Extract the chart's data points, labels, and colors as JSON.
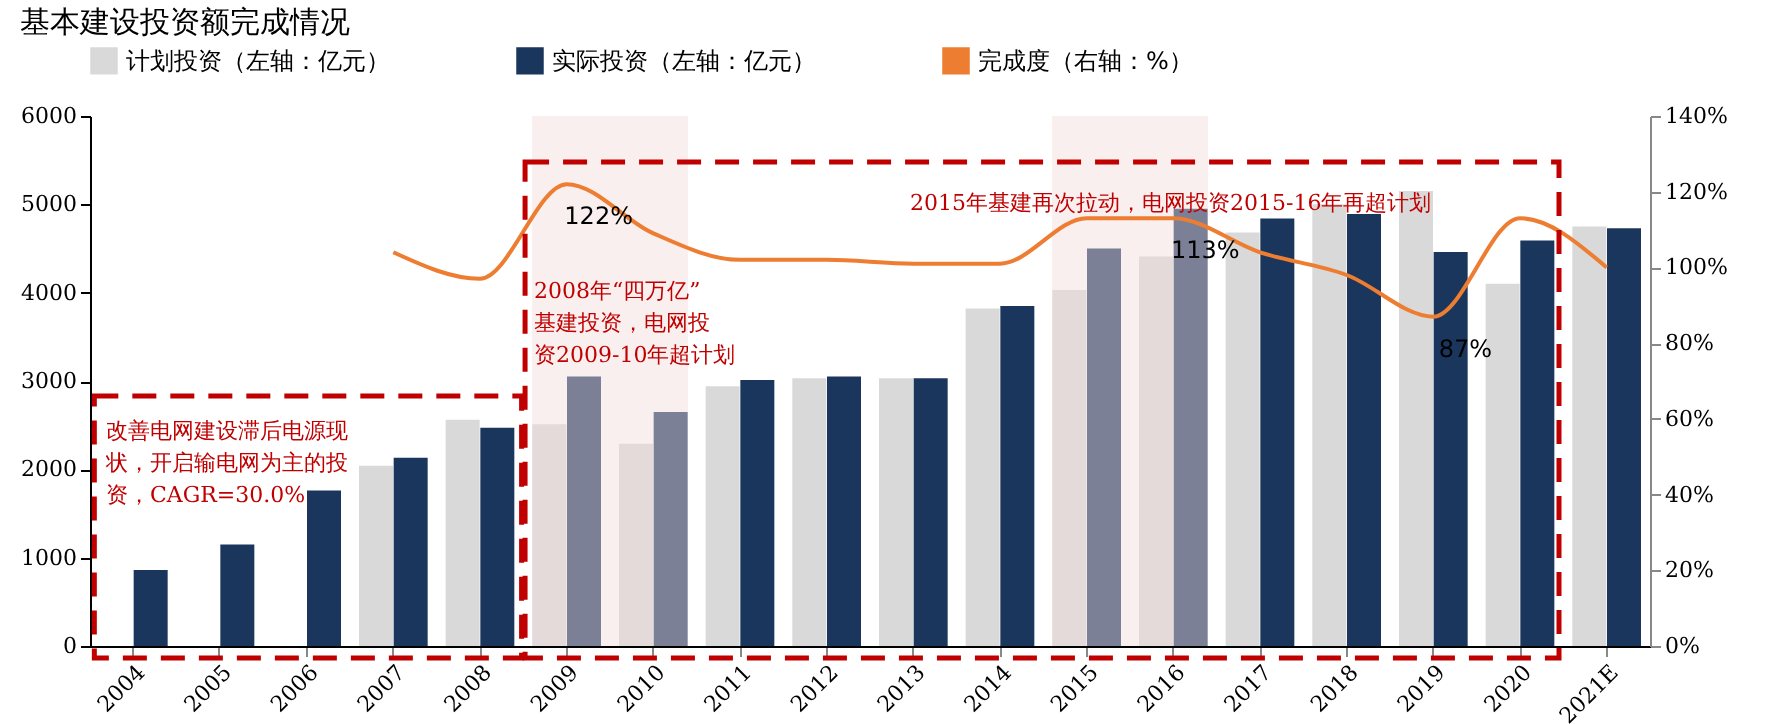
{
  "chart_data": {
    "type": "bar",
    "title": "基本建设投资额完成情况",
    "categories": [
      "2004",
      "2005",
      "2006",
      "2007",
      "2008",
      "2009",
      "2010",
      "2011",
      "2012",
      "2013",
      "2014",
      "2015",
      "2016",
      "2017",
      "2018",
      "2019",
      "2020",
      "2021E"
    ],
    "series": [
      {
        "name": "计划投资（左轴：亿元）",
        "color": "#d9d9d9",
        "values": [
          null,
          null,
          null,
          2040,
          2560,
          2510,
          2290,
          2940,
          3030,
          3030,
          3820,
          4030,
          4410,
          4680,
          5000,
          5150,
          4100,
          4750
        ]
      },
      {
        "name": "实际投资（左轴：亿元）",
        "color": "#1b365d",
        "values": [
          860,
          1150,
          1760,
          2130,
          2470,
          3050,
          2650,
          3010,
          3050,
          3030,
          3850,
          4500,
          4950,
          4840,
          4890,
          4460,
          4590,
          4730
        ]
      },
      {
        "name": "完成度（右轴：%）",
        "type": "line",
        "axis": "y2",
        "color": "#ed7d31",
        "values": [
          null,
          null,
          null,
          104,
          97,
          122,
          109,
          102,
          102,
          101,
          101,
          113,
          113,
          104,
          98,
          87,
          113,
          100
        ],
        "value_labels": [
          null,
          null,
          null,
          null,
          null,
          "122%",
          null,
          null,
          null,
          null,
          null,
          null,
          "113%",
          null,
          null,
          "87%",
          null,
          null
        ]
      }
    ],
    "ylim": [
      0,
      6000
    ],
    "yticks": [
      0,
      1000,
      2000,
      3000,
      4000,
      5000,
      6000
    ],
    "y2lim": [
      0,
      140
    ],
    "y2ticks": [
      {
        "value": 0,
        "label": "0%"
      },
      {
        "value": 20,
        "label": "20%"
      },
      {
        "value": 40,
        "label": "40%"
      },
      {
        "value": 60,
        "label": "60%"
      },
      {
        "value": 80,
        "label": "80%"
      },
      {
        "value": 100,
        "label": "100%"
      },
      {
        "value": 120,
        "label": "120%"
      },
      {
        "value": 140,
        "label": "140%"
      }
    ],
    "bands": [
      {
        "axis": "x",
        "from": "2009",
        "to": "2010",
        "color": "#f2dcdb"
      },
      {
        "axis": "x",
        "from": "2015",
        "to": "2016",
        "color": "#f2dcdb"
      }
    ],
    "annotations": [
      "改善电网建设滞后电源现状，开启输电网为主的投资，CAGR=30.0%",
      "2008年“四万亿”基建投资，电网投资2009-10年超计划",
      "2015年基建再次拉动，电网投资2015-16年再超计划"
    ],
    "legend": "top",
    "grid": false
  }
}
